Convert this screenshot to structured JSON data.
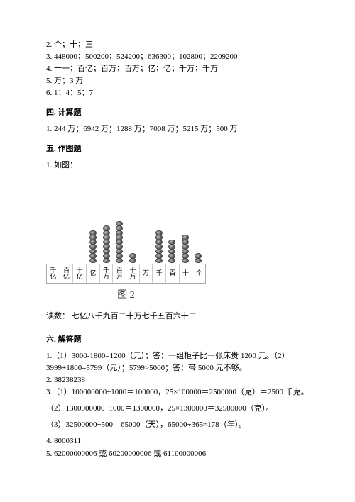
{
  "answers_top": [
    "2. 个；十；三",
    "3. 448000；500200；524200；636300；102800；2209200",
    "4. 十一；百亿；百万；百万；亿；亿；千万；千万",
    "5. 万；3 万",
    "6. 1；4；5；7"
  ],
  "section4": {
    "head": "四. 计算题",
    "line": "1. 244 万；6942 万；1288 万；7008 万；5215 万；500 万"
  },
  "section5": {
    "head": "五. 作图题",
    "sub": "1. 如图："
  },
  "abacus": {
    "labels": [
      "千亿",
      "百亿",
      "十亿",
      "亿",
      "千万",
      "百万",
      "十万",
      "万",
      "千",
      "百",
      "十",
      "个"
    ],
    "beads": [
      0,
      0,
      0,
      7,
      8,
      9,
      2,
      0,
      7,
      5,
      6,
      2
    ],
    "bead_fill_inner": "#bbbbbb",
    "bead_fill_outer": "#555555",
    "rod_color": "#555555",
    "border_color": "#aaaaaa",
    "caption": "图 2"
  },
  "reading": "读数：  七亿八千九百二十万七千五百六十二",
  "section6": {
    "head": "六. 解答题",
    "lines": [
      "1.（1）3000-1800=1200（元）；答：一组柜子比一张床贵 1200 元。（2）3999+1800=5799（元）；5799>5000；答：带 5000 元不够。",
      "2. 38238238",
      "3.（1）100000000÷1000＝100000，25×100000＝2500000（克）＝2500 千克。",
      "（2）1300000000÷1000＝1300000，25×1300000＝32500000（克）。",
      "（3）32500000÷500＝65000（天），65000÷365≈178（年）。",
      "4. 8000311",
      "5. 62000000006 或 60200000006 或 61100000006"
    ]
  }
}
